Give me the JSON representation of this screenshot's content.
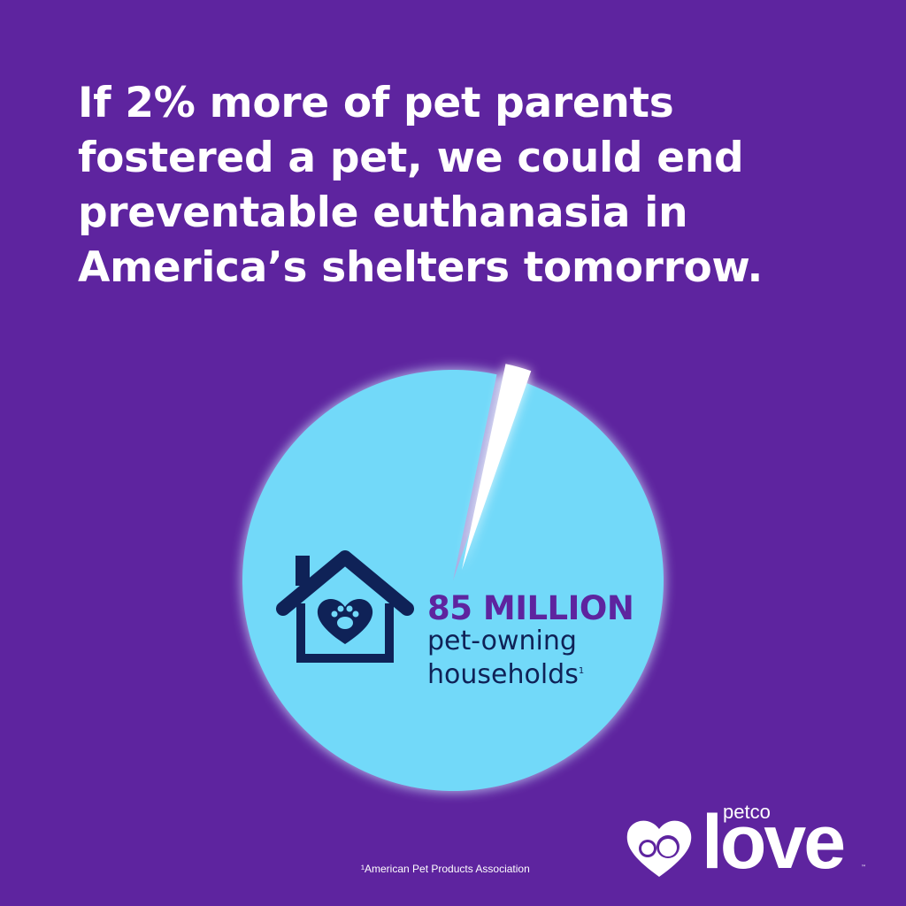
{
  "headline": "If 2% more of pet parents fostered a pet, we could end preventable euthanasia in America’s shelters tomorrow.",
  "stat": {
    "number": "85 MILLION",
    "line1": "pet-owning",
    "line2": "households",
    "footnote_mark": "1"
  },
  "footnote": "¹American Pet Products Association",
  "logo": {
    "petco": "petco",
    "love": "love",
    "tm": "™"
  },
  "icons": {
    "house": "house-with-heart-paw-icon",
    "logo": "heart-cat-dog-icon"
  },
  "colors": {
    "background": "#5e249f",
    "pie_main": "#72d9f9",
    "pie_slice": "#ffffff",
    "stat_number": "#5e249f",
    "icon": "#0f2257"
  },
  "chart_data": {
    "type": "pie",
    "slices": [
      {
        "value": 98,
        "color": "#72d9f9"
      },
      {
        "value": 2,
        "color": "#ffffff",
        "exploded": true
      }
    ]
  }
}
